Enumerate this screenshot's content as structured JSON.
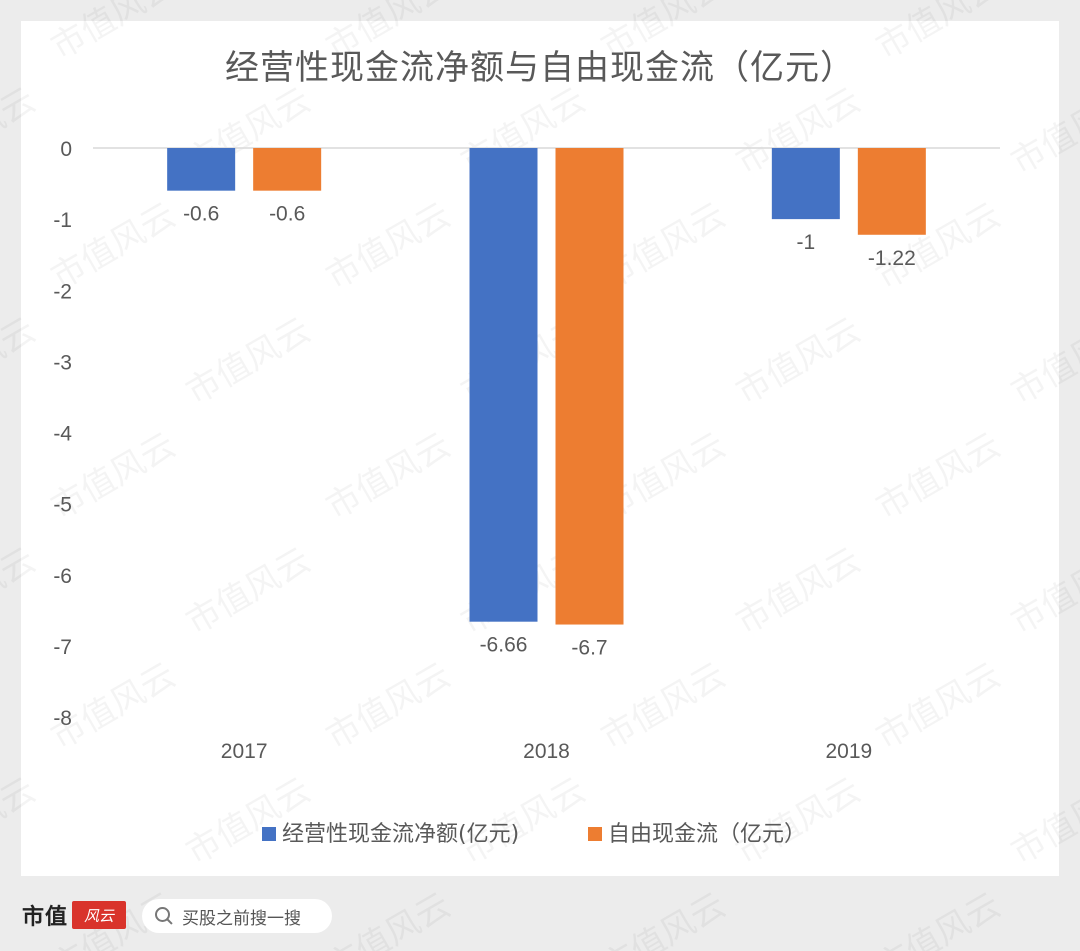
{
  "page": {
    "watermark_text": "市值风云"
  },
  "footer": {
    "brand": "市值",
    "brand_seal": "风云",
    "search_placeholder": "买股之前搜一搜"
  },
  "colors": {
    "series1": "#4472c4",
    "series2": "#ed7d31",
    "axis_text": "#595959",
    "gridline": "#d9d9d9"
  },
  "chart_data": {
    "type": "bar",
    "title": "经营性现金流净额与自由现金流（亿元）",
    "categories": [
      "2017",
      "2018",
      "2019"
    ],
    "series": [
      {
        "name": "经营性现金流净额(亿元)",
        "values": [
          -0.6,
          -6.66,
          -1
        ],
        "labels": [
          "-0.6",
          "-6.66",
          "-1"
        ]
      },
      {
        "name": "自由现金流（亿元）",
        "values": [
          -0.6,
          -6.7,
          -1.22
        ],
        "labels": [
          "-0.6",
          "-6.7",
          "-1.22"
        ]
      }
    ],
    "ylim": [
      -8,
      0
    ],
    "yticks": [
      0,
      -1,
      -2,
      -3,
      -4,
      -5,
      -6,
      -7,
      -8
    ],
    "grid": false,
    "legend": "bottom"
  }
}
